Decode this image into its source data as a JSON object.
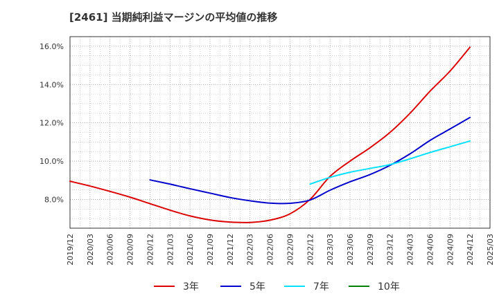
{
  "chart_data": {
    "type": "line",
    "title": "[2461]  当期純利益マージンの平均値の推移",
    "xlabel": "",
    "ylabel": "",
    "x_ticks": [
      "2019/12",
      "2020/03",
      "2020/06",
      "2020/09",
      "2020/12",
      "2021/03",
      "2021/06",
      "2021/09",
      "2021/12",
      "2022/03",
      "2022/06",
      "2022/09",
      "2022/12",
      "2023/03",
      "2023/06",
      "2023/09",
      "2023/12",
      "2024/03",
      "2024/06",
      "2024/09",
      "2024/12",
      "2025/03"
    ],
    "y_ticks": [
      "8.0%",
      "10.0%",
      "12.0%",
      "14.0%",
      "16.0%"
    ],
    "ylim": [
      6.5,
      16.5
    ],
    "grid": true,
    "legend_position": "bottom",
    "series": [
      {
        "name": "3年",
        "color": "#dd0000",
        "x": [
          "2019/12",
          "2020/03",
          "2020/06",
          "2020/09",
          "2020/12",
          "2021/03",
          "2021/06",
          "2021/09",
          "2021/12",
          "2022/03",
          "2022/06",
          "2022/09",
          "2022/12",
          "2023/03",
          "2023/06",
          "2023/09",
          "2023/12",
          "2024/03",
          "2024/06",
          "2024/09",
          "2024/12"
        ],
        "values": [
          8.95,
          8.7,
          8.42,
          8.12,
          7.78,
          7.44,
          7.14,
          6.93,
          6.82,
          6.8,
          6.92,
          7.25,
          8.0,
          9.2,
          10.0,
          10.7,
          11.5,
          12.5,
          13.65,
          14.7,
          15.95
        ]
      },
      {
        "name": "5年",
        "color": "#0000cc",
        "x": [
          "2020/12",
          "2021/03",
          "2021/06",
          "2021/09",
          "2021/12",
          "2022/03",
          "2022/06",
          "2022/09",
          "2022/12",
          "2023/03",
          "2023/06",
          "2023/09",
          "2023/12",
          "2024/03",
          "2024/06",
          "2024/09",
          "2024/12"
        ],
        "values": [
          9.02,
          8.8,
          8.56,
          8.33,
          8.1,
          7.93,
          7.81,
          7.8,
          7.97,
          8.48,
          8.92,
          9.3,
          9.78,
          10.38,
          11.08,
          11.68,
          12.28
        ]
      },
      {
        "name": "7年",
        "color": "#00e0ff",
        "x": [
          "2022/12",
          "2023/03",
          "2023/06",
          "2023/09",
          "2023/12",
          "2024/03",
          "2024/06",
          "2024/09",
          "2024/12"
        ],
        "values": [
          8.8,
          9.15,
          9.42,
          9.62,
          9.82,
          10.12,
          10.45,
          10.75,
          11.05
        ]
      },
      {
        "name": "10年",
        "color": "#008000",
        "x": [],
        "values": []
      }
    ]
  }
}
